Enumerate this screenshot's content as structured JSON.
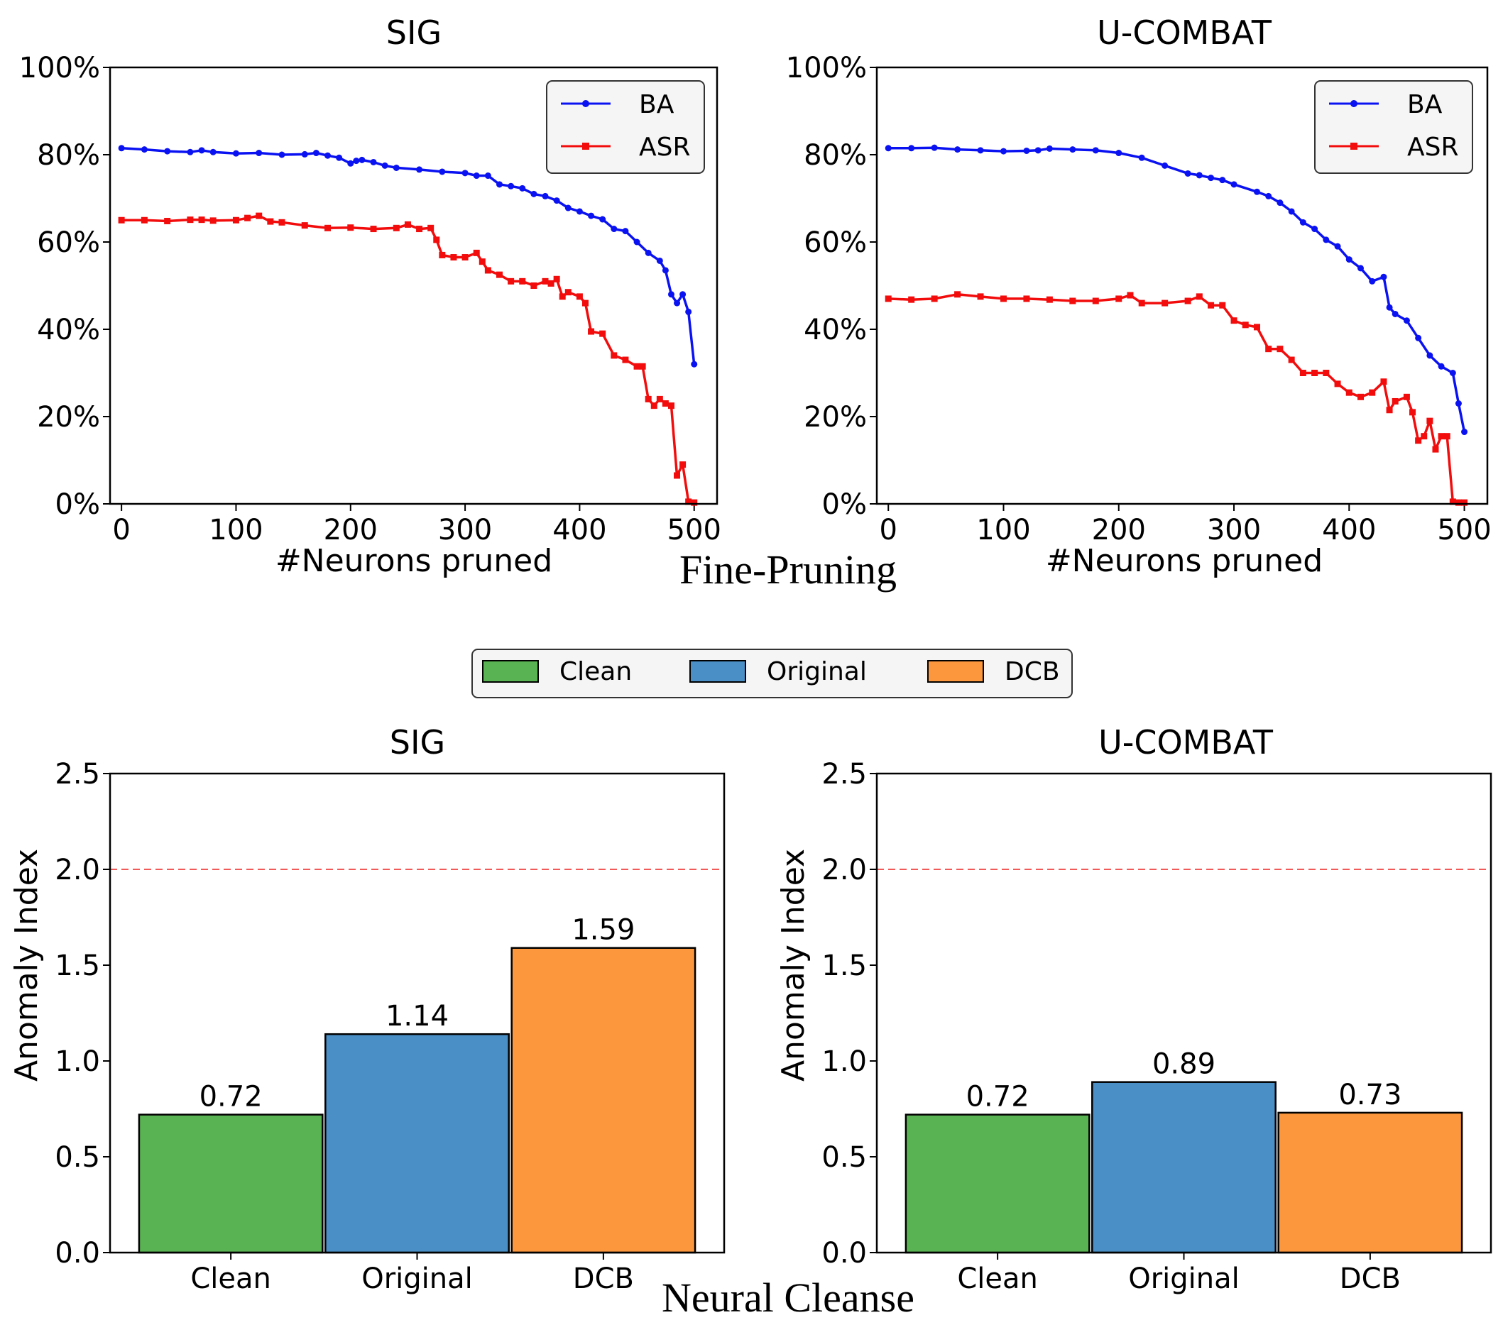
{
  "groups": {
    "top": "Fine-Pruning",
    "bottom": "Neural Cleanse"
  },
  "colors": {
    "ba": "#0a12f2",
    "asr": "#f20c0c",
    "clean": "#59b352",
    "original": "#4a8fc5",
    "dcb": "#fd973d",
    "threshold": "#f25a5a"
  },
  "shared_legend": [
    "Clean",
    "Original",
    "DCB"
  ],
  "chart_data": [
    {
      "type": "line",
      "title": "SIG",
      "xlabel": "#Neurons pruned",
      "ylabel": "",
      "xlim": [
        -10,
        520
      ],
      "ylim": [
        0,
        100
      ],
      "xticks": [
        0,
        100,
        200,
        300,
        400,
        500
      ],
      "yticks": [
        "0%",
        "20%",
        "40%",
        "60%",
        "80%",
        "100%"
      ],
      "legend": [
        "BA",
        "ASR"
      ],
      "series": [
        {
          "name": "BA",
          "marker": "circle",
          "x": [
            0,
            20,
            40,
            60,
            70,
            80,
            100,
            120,
            140,
            160,
            170,
            180,
            190,
            200,
            205,
            210,
            220,
            230,
            240,
            260,
            280,
            300,
            310,
            320,
            330,
            340,
            350,
            360,
            370,
            380,
            390,
            400,
            410,
            420,
            430,
            440,
            450,
            460,
            470,
            475,
            480,
            485,
            490,
            495,
            500
          ],
          "y": [
            81.5,
            81.2,
            80.8,
            80.6,
            81.0,
            80.6,
            80.3,
            80.4,
            80.0,
            80.1,
            80.4,
            79.8,
            79.3,
            78.0,
            78.6,
            78.8,
            78.3,
            77.5,
            77.0,
            76.6,
            76.1,
            75.8,
            75.2,
            75.2,
            73.2,
            72.8,
            72.3,
            71.0,
            70.5,
            69.5,
            67.8,
            67.0,
            66.0,
            65.2,
            63.0,
            62.5,
            60.0,
            57.5,
            55.7,
            53.5,
            48.0,
            46.0,
            48.0,
            44.0,
            32.0
          ]
        },
        {
          "name": "ASR",
          "marker": "square",
          "x": [
            0,
            20,
            40,
            60,
            70,
            80,
            100,
            110,
            120,
            130,
            140,
            160,
            180,
            200,
            220,
            240,
            250,
            260,
            270,
            275,
            280,
            290,
            300,
            310,
            315,
            320,
            330,
            340,
            350,
            360,
            370,
            375,
            380,
            385,
            390,
            400,
            405,
            410,
            420,
            430,
            440,
            450,
            455,
            460,
            465,
            470,
            475,
            480,
            485,
            490,
            495,
            500
          ],
          "y": [
            65.0,
            65.0,
            64.8,
            65.1,
            65.1,
            64.9,
            65.0,
            65.5,
            66.0,
            64.7,
            64.5,
            63.8,
            63.2,
            63.3,
            63.0,
            63.2,
            64.0,
            63.0,
            63.2,
            60.5,
            57.0,
            56.5,
            56.5,
            57.5,
            55.5,
            53.5,
            52.5,
            51.0,
            51.0,
            50.0,
            51.0,
            50.5,
            51.5,
            47.5,
            48.5,
            47.5,
            46.0,
            39.5,
            39.0,
            34.0,
            33.0,
            31.5,
            31.5,
            24.0,
            22.5,
            24.0,
            23.0,
            22.5,
            6.5,
            9.0,
            0.5,
            0.3
          ]
        }
      ]
    },
    {
      "type": "line",
      "title": "U-COMBAT",
      "xlabel": "#Neurons pruned",
      "ylabel": "",
      "xlim": [
        -10,
        520
      ],
      "ylim": [
        0,
        100
      ],
      "xticks": [
        0,
        100,
        200,
        300,
        400,
        500
      ],
      "yticks": [
        "0%",
        "20%",
        "40%",
        "60%",
        "80%",
        "100%"
      ],
      "legend": [
        "BA",
        "ASR"
      ],
      "series": [
        {
          "name": "BA",
          "marker": "circle",
          "x": [
            0,
            20,
            40,
            60,
            80,
            100,
            120,
            130,
            140,
            160,
            180,
            200,
            220,
            240,
            260,
            270,
            280,
            290,
            300,
            320,
            330,
            340,
            350,
            360,
            370,
            380,
            390,
            400,
            410,
            420,
            430,
            435,
            440,
            450,
            460,
            470,
            480,
            490,
            495,
            500
          ],
          "y": [
            81.5,
            81.5,
            81.6,
            81.2,
            81.0,
            80.8,
            80.9,
            81.0,
            81.4,
            81.2,
            81.0,
            80.4,
            79.3,
            77.5,
            75.7,
            75.3,
            74.7,
            74.2,
            73.2,
            71.5,
            70.5,
            69.0,
            67.0,
            64.5,
            63.0,
            60.5,
            59.0,
            56.0,
            54.0,
            51.0,
            52.0,
            45.0,
            43.5,
            42.0,
            38.0,
            34.0,
            31.5,
            30.0,
            23.0,
            16.5
          ]
        },
        {
          "name": "ASR",
          "marker": "square",
          "x": [
            0,
            20,
            40,
            60,
            80,
            100,
            120,
            140,
            160,
            180,
            200,
            210,
            220,
            240,
            260,
            270,
            280,
            290,
            300,
            310,
            320,
            330,
            340,
            350,
            360,
            370,
            380,
            390,
            400,
            410,
            420,
            430,
            435,
            440,
            450,
            455,
            460,
            465,
            470,
            475,
            480,
            485,
            490,
            495,
            500
          ],
          "y": [
            47.0,
            46.8,
            47.0,
            48.0,
            47.5,
            47.0,
            47.0,
            46.8,
            46.5,
            46.5,
            47.0,
            47.8,
            46.0,
            46.0,
            46.5,
            47.5,
            45.5,
            45.5,
            42.0,
            41.0,
            40.5,
            35.5,
            35.5,
            33.0,
            30.0,
            30.0,
            30.0,
            27.5,
            25.5,
            24.5,
            25.5,
            28.0,
            21.5,
            23.5,
            24.5,
            21.0,
            14.5,
            15.5,
            19.0,
            12.5,
            15.5,
            15.5,
            0.5,
            0.3,
            0.3
          ]
        }
      ]
    },
    {
      "type": "bar",
      "title": "SIG",
      "xlabel": "",
      "ylabel": "Anomaly Index",
      "ylim": [
        0,
        2.5
      ],
      "yticks": [
        "0.0",
        "0.5",
        "1.0",
        "1.5",
        "2.0",
        "2.5"
      ],
      "threshold": 2.0,
      "categories": [
        "Clean",
        "Original",
        "DCB"
      ],
      "values": [
        0.72,
        1.14,
        1.59
      ],
      "labels": [
        "0.72",
        "1.14",
        "1.59"
      ]
    },
    {
      "type": "bar",
      "title": "U-COMBAT",
      "xlabel": "",
      "ylabel": "Anomaly Index",
      "ylim": [
        0,
        2.5
      ],
      "yticks": [
        "0.0",
        "0.5",
        "1.0",
        "1.5",
        "2.0",
        "2.5"
      ],
      "threshold": 2.0,
      "categories": [
        "Clean",
        "Original",
        "DCB"
      ],
      "values": [
        0.72,
        0.89,
        0.73
      ],
      "labels": [
        "0.72",
        "0.89",
        "0.73"
      ]
    }
  ]
}
